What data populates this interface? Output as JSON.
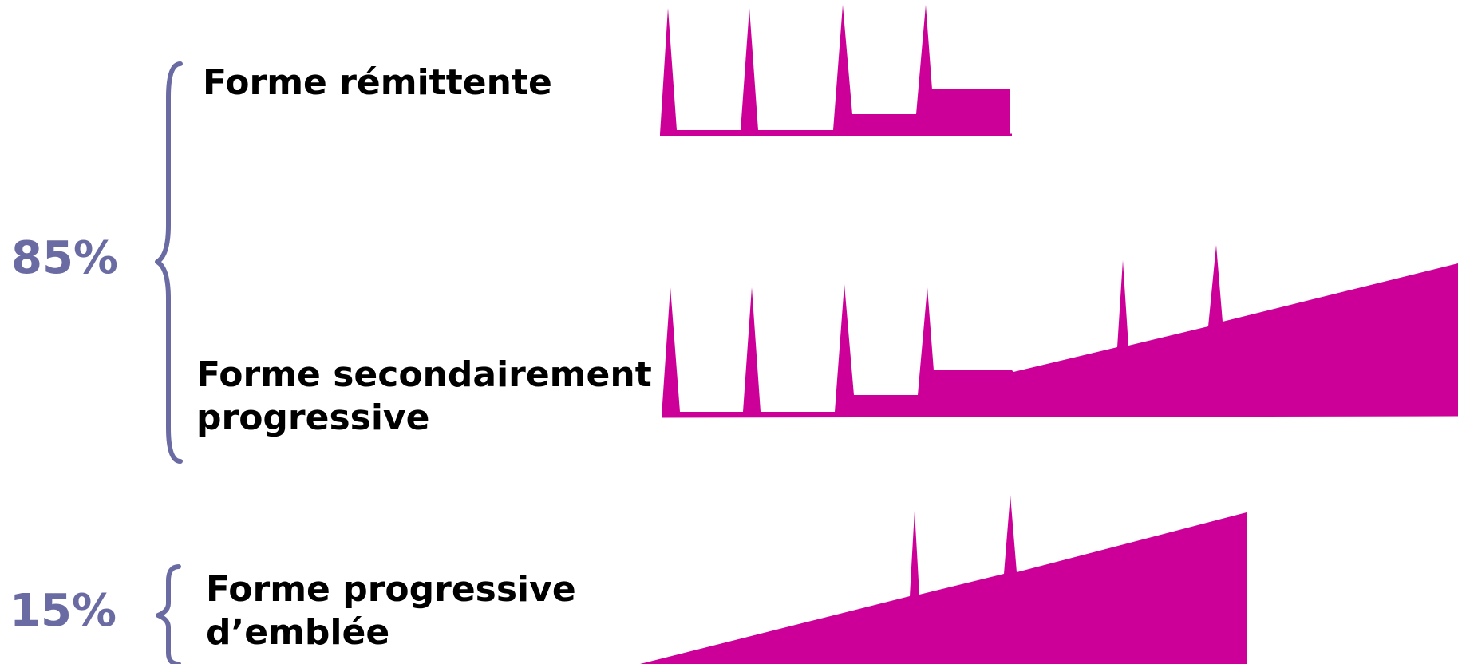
{
  "colors": {
    "profile_fill": "#CC0099",
    "percent_text": "#6B6BA3",
    "brace": "#6B6BA3",
    "label_text": "#000000"
  },
  "groups": [
    {
      "percent": "85%"
    },
    {
      "percent": "15%"
    }
  ],
  "forms": [
    {
      "id": "remittent",
      "label_lines": [
        "Forme rémittente"
      ]
    },
    {
      "id": "secondary",
      "label_lines": [
        "Forme secondairement",
        "progressive"
      ]
    },
    {
      "id": "primary",
      "label_lines": [
        "Forme progressive",
        "d’emblée"
      ]
    }
  ]
}
